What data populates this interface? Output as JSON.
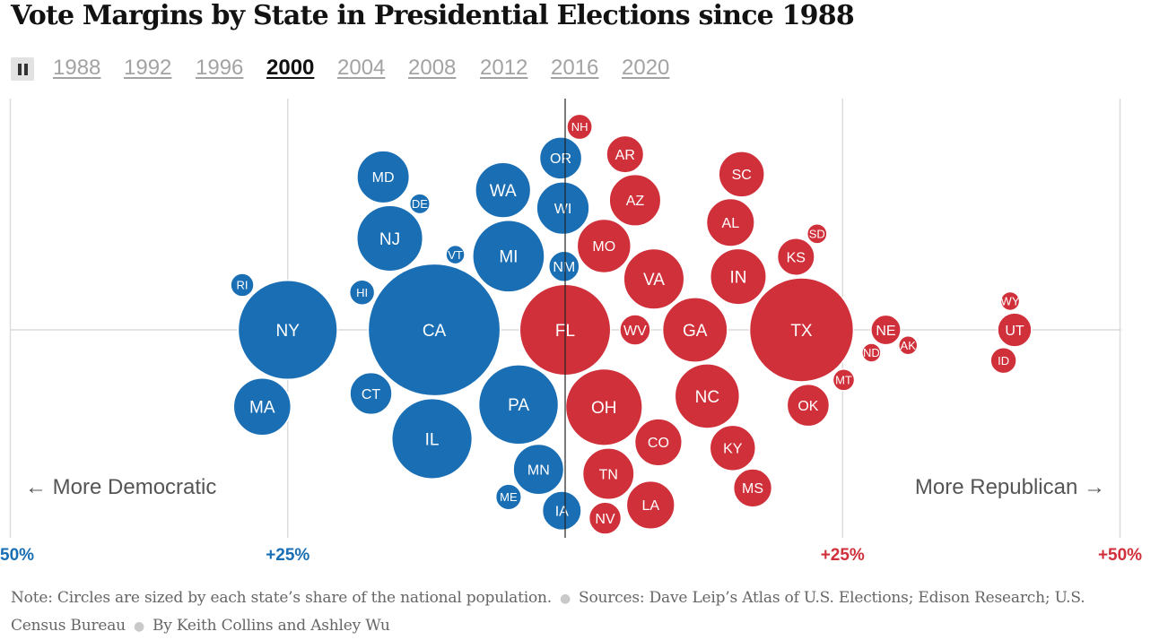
{
  "title": "Vote Margins by State in Presidential Elections since 1988",
  "controls": {
    "pause_icon": "pause-icon",
    "years": [
      "1988",
      "1992",
      "1996",
      "2000",
      "2004",
      "2008",
      "2012",
      "2016",
      "2020"
    ],
    "active_year": "2000"
  },
  "colors": {
    "democratic": "#1a6eb4",
    "republican": "#d0303a",
    "grid": "#dcdcdc",
    "center": "#222222"
  },
  "chart_data": {
    "type": "scatter",
    "title": "",
    "xlabel": "",
    "ylabel": "",
    "xlim": [
      -50,
      50
    ],
    "x_ticks": [
      "50%",
      "+25%",
      "+25%",
      "+50%"
    ],
    "annotations": {
      "left": "← More Democratic",
      "right": "More Republican →"
    },
    "size_note": "Circles are sized by each state’s share of the national population.",
    "states": [
      {
        "label": "PA",
        "party": "D",
        "margin": 4.2,
        "pop_share": 4.36
      },
      {
        "label": "MO",
        "party": "R",
        "margin": 3.5,
        "pop_share": 1.98
      },
      {
        "label": "WI",
        "party": "D",
        "margin": 0.2,
        "pop_share": 1.9
      },
      {
        "label": "IL",
        "party": "D",
        "margin": 12.0,
        "pop_share": 4.43
      },
      {
        "label": "NJ",
        "party": "D",
        "margin": 15.8,
        "pop_share": 2.98
      },
      {
        "label": "AZ",
        "party": "R",
        "margin": 6.3,
        "pop_share": 1.82
      },
      {
        "label": "NC",
        "party": "R",
        "margin": 12.8,
        "pop_share": 2.86
      },
      {
        "label": "VT",
        "party": "D",
        "margin": 9.9,
        "pop_share": 0.22
      },
      {
        "label": "IA",
        "party": "D",
        "margin": 0.3,
        "pop_share": 1.04
      },
      {
        "label": "AR",
        "party": "R",
        "margin": 5.4,
        "pop_share": 0.95
      },
      {
        "label": "LA",
        "party": "R",
        "margin": 7.7,
        "pop_share": 1.59
      },
      {
        "label": "TX",
        "party": "R",
        "margin": 21.3,
        "pop_share": 7.4
      },
      {
        "label": "NH",
        "party": "R",
        "margin": 1.3,
        "pop_share": 0.44
      },
      {
        "label": "AL",
        "party": "R",
        "margin": 14.9,
        "pop_share": 1.58
      },
      {
        "label": "NY",
        "party": "D",
        "margin": 25.0,
        "pop_share": 6.74
      },
      {
        "label": "WV",
        "party": "R",
        "margin": 6.3,
        "pop_share": 0.64
      },
      {
        "label": "WY",
        "party": "R",
        "margin": 40.1,
        "pop_share": 0.18
      },
      {
        "label": "HI",
        "party": "D",
        "margin": 18.3,
        "pop_share": 0.43
      },
      {
        "label": "CA",
        "party": "D",
        "margin": 11.8,
        "pop_share": 11.95
      },
      {
        "label": "NE",
        "party": "R",
        "margin": 28.9,
        "pop_share": 0.61
      },
      {
        "label": "AK",
        "party": "R",
        "margin": 30.9,
        "pop_share": 0.22
      },
      {
        "label": "UT",
        "party": "R",
        "margin": 40.5,
        "pop_share": 0.79
      },
      {
        "label": "MT",
        "party": "R",
        "margin": 25.1,
        "pop_share": 0.32
      },
      {
        "label": "FL",
        "party": "R",
        "margin": 0.0,
        "pop_share": 5.67
      },
      {
        "label": "VA",
        "party": "R",
        "margin": 8.0,
        "pop_share": 2.51
      },
      {
        "label": "KY",
        "party": "R",
        "margin": 15.1,
        "pop_share": 1.43
      },
      {
        "label": "SC",
        "party": "R",
        "margin": 15.9,
        "pop_share": 1.43
      },
      {
        "label": "ME",
        "party": "D",
        "margin": 5.1,
        "pop_share": 0.45
      },
      {
        "label": "RI",
        "party": "D",
        "margin": 29.1,
        "pop_share": 0.37
      },
      {
        "label": "ND",
        "party": "R",
        "margin": 27.6,
        "pop_share": 0.23
      },
      {
        "label": "ID",
        "party": "R",
        "margin": 39.5,
        "pop_share": 0.46
      },
      {
        "label": "OK",
        "party": "R",
        "margin": 21.9,
        "pop_share": 1.22
      },
      {
        "label": "CT",
        "party": "D",
        "margin": 17.5,
        "pop_share": 1.21
      },
      {
        "label": "MA",
        "party": "D",
        "margin": 27.3,
        "pop_share": 2.26
      },
      {
        "label": "SD",
        "party": "R",
        "margin": 22.7,
        "pop_share": 0.27
      },
      {
        "label": "NV",
        "party": "R",
        "margin": 3.6,
        "pop_share": 0.71
      },
      {
        "label": "IN",
        "party": "R",
        "margin": 15.6,
        "pop_share": 2.15
      },
      {
        "label": "MI",
        "party": "D",
        "margin": 5.1,
        "pop_share": 3.54
      },
      {
        "label": "CO",
        "party": "R",
        "margin": 8.4,
        "pop_share": 1.53
      },
      {
        "label": "KS",
        "party": "R",
        "margin": 20.8,
        "pop_share": 0.95
      },
      {
        "label": "MD",
        "party": "D",
        "margin": 16.4,
        "pop_share": 1.88
      },
      {
        "label": "DE",
        "party": "D",
        "margin": 13.1,
        "pop_share": 0.28
      },
      {
        "label": "OR",
        "party": "D",
        "margin": 0.4,
        "pop_share": 1.22
      },
      {
        "label": "TN",
        "party": "R",
        "margin": 3.9,
        "pop_share": 1.81
      },
      {
        "label": "GA",
        "party": "R",
        "margin": 11.7,
        "pop_share": 2.88
      },
      {
        "label": "MS",
        "party": "R",
        "margin": 16.9,
        "pop_share": 1.01
      },
      {
        "label": "NM",
        "party": "D",
        "margin": 0.1,
        "pop_share": 0.64
      },
      {
        "label": "WA",
        "party": "D",
        "margin": 5.6,
        "pop_share": 2.1
      },
      {
        "label": "MN",
        "party": "D",
        "margin": 2.4,
        "pop_share": 1.75
      },
      {
        "label": "OH",
        "party": "R",
        "margin": 3.5,
        "pop_share": 4.04
      }
    ]
  },
  "note": {
    "text1": "Note: Circles are sized by each state’s share of the national population.",
    "sep": "●",
    "text2": "Sources: Dave Leip’s Atlas of U.S. Elections; Edison Research; U.S. Census Bureau",
    "text3": "By Keith Collins and Ashley Wu"
  }
}
